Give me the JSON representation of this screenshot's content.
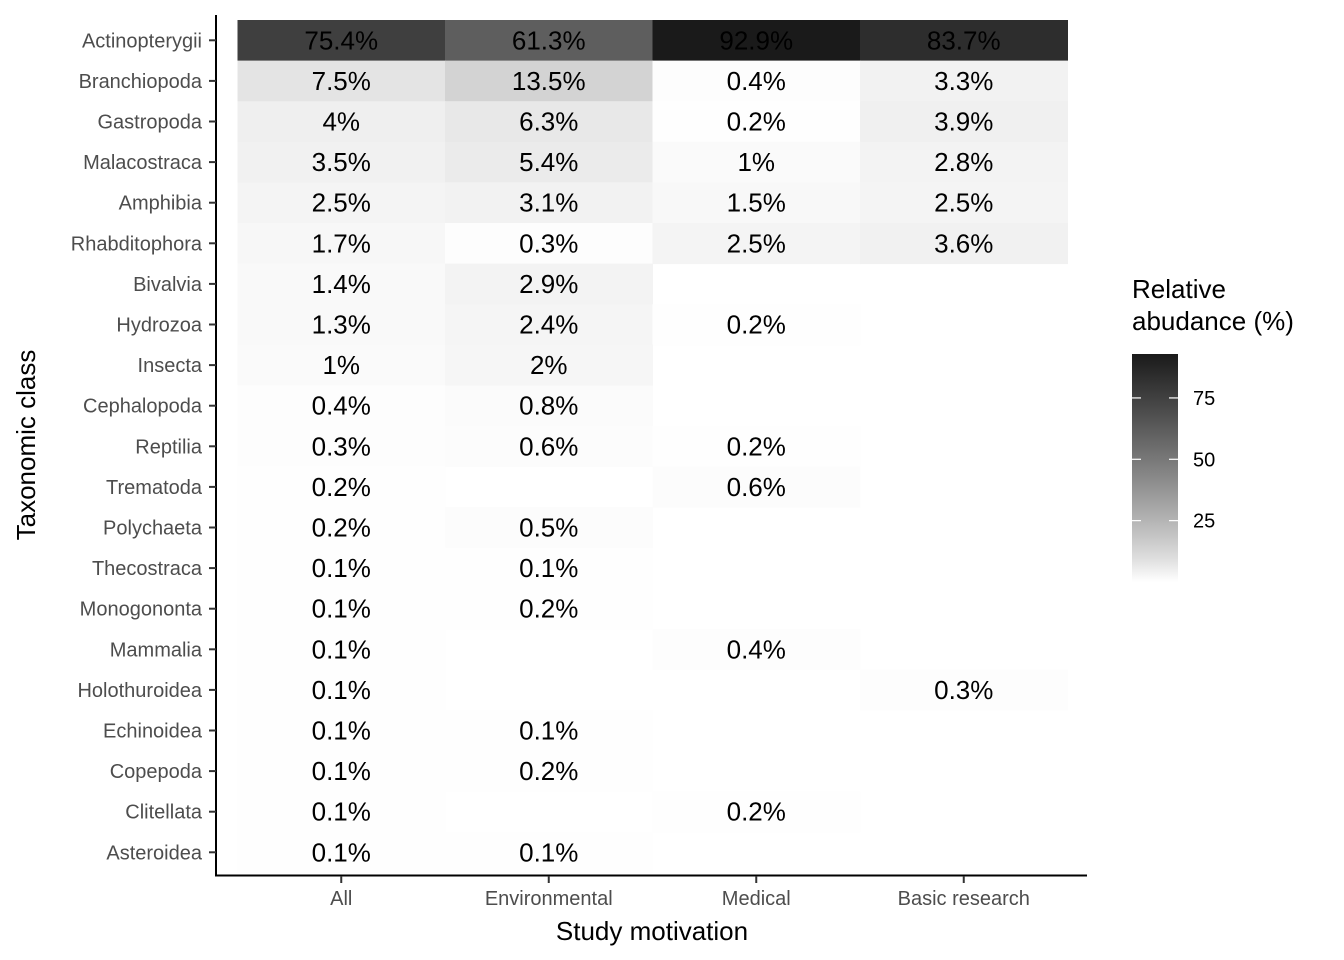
{
  "chart_data": {
    "type": "heatmap",
    "title": "",
    "xlabel": "Study motivation",
    "ylabel": "Taxonomic class",
    "x_categories": [
      "All",
      "Environmental",
      "Medical",
      "Basic research"
    ],
    "y_categories": [
      "Actinopterygii",
      "Branchiopoda",
      "Gastropoda",
      "Malacostraca",
      "Amphibia",
      "Rhabditophora",
      "Bivalvia",
      "Hydrozoa",
      "Insecta",
      "Cephalopoda",
      "Reptilia",
      "Trematoda",
      "Polychaeta",
      "Thecostraca",
      "Monogononta",
      "Mammalia",
      "Holothuroidea",
      "Echinoidea",
      "Copepoda",
      "Clitellata",
      "Asteroidea"
    ],
    "values": [
      [
        75.4,
        61.3,
        92.9,
        83.7
      ],
      [
        7.5,
        13.5,
        0.4,
        3.3
      ],
      [
        4,
        6.3,
        0.2,
        3.9
      ],
      [
        3.5,
        5.4,
        1,
        2.8
      ],
      [
        2.5,
        3.1,
        1.5,
        2.5
      ],
      [
        1.7,
        0.3,
        2.5,
        3.6
      ],
      [
        1.4,
        2.9,
        null,
        null
      ],
      [
        1.3,
        2.4,
        0.2,
        null
      ],
      [
        1,
        2,
        null,
        null
      ],
      [
        0.4,
        0.8,
        null,
        null
      ],
      [
        0.3,
        0.6,
        0.2,
        null
      ],
      [
        0.2,
        null,
        0.6,
        null
      ],
      [
        0.2,
        0.5,
        null,
        null
      ],
      [
        0.1,
        0.1,
        null,
        null
      ],
      [
        0.1,
        0.2,
        null,
        null
      ],
      [
        0.1,
        null,
        0.4,
        null
      ],
      [
        0.1,
        null,
        null,
        0.3
      ],
      [
        0.1,
        0.1,
        null,
        null
      ],
      [
        0.1,
        0.2,
        null,
        null
      ],
      [
        0.1,
        null,
        0.2,
        null
      ],
      [
        0.1,
        0.1,
        null,
        null
      ]
    ],
    "value_suffix": "%",
    "legend": {
      "title_lines": [
        "Relative",
        "abudance (%)"
      ],
      "ticks": [
        25,
        50,
        75
      ],
      "range": [
        0,
        92.9
      ],
      "position": "right"
    },
    "colors": {
      "low": "#ffffff",
      "high": "#1a1a1a"
    },
    "grid": false
  }
}
